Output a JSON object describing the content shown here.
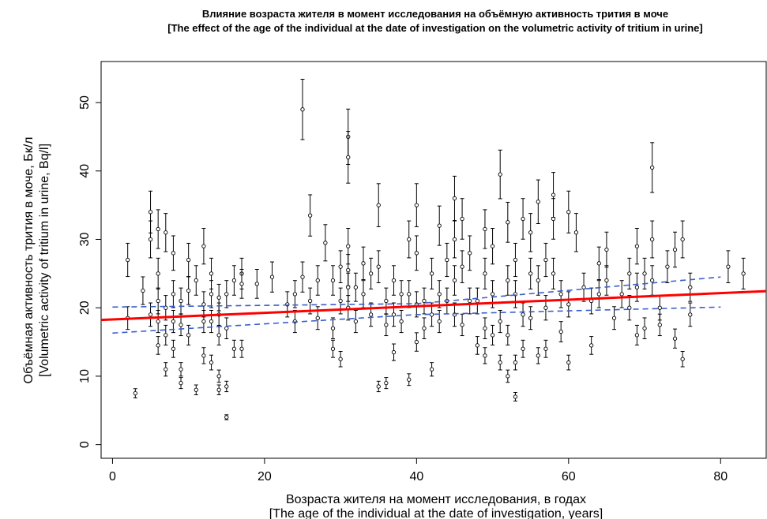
{
  "chart_data": {
    "type": "scatter",
    "title": "Влияние возраста жителя в момент исследования на объёмную активность трития в моче",
    "subtitle": "[The effect of the age of the individual at the date of investigation on the volumetric activity of tritium in urine]",
    "xlabel": "Возраста жителя на момент исследования, в годах",
    "xlabel_en": "[The age of the individual at the date of investigation, years]",
    "ylabel": "Объёмная активность трития в моче, Бк/л",
    "ylabel_en": "[Volumetric activity of tritium in urine, Bq/l]",
    "xlim": [
      -1.5,
      86
    ],
    "ylim": [
      -2,
      56
    ],
    "xticks": [
      0,
      20,
      40,
      60,
      80
    ],
    "yticks": [
      0,
      10,
      20,
      30,
      40,
      50
    ],
    "grid": false,
    "error_fraction": 0.09,
    "point_color": "#000000",
    "fit_color": "#ff0000",
    "ci_color": "#3a5fcd",
    "regression": {
      "intercept": 18.3,
      "slope": 0.048
    },
    "ci_lower": [
      [
        0,
        16.3
      ],
      [
        40,
        19.0
      ],
      [
        80,
        20.1
      ]
    ],
    "ci_upper": [
      [
        0,
        20.1
      ],
      [
        40,
        20.6
      ],
      [
        80,
        24.5
      ]
    ],
    "points": [
      [
        2,
        27
      ],
      [
        2,
        18.5
      ],
      [
        3,
        7.5
      ],
      [
        4,
        22.5
      ],
      [
        5,
        19
      ],
      [
        5,
        34
      ],
      [
        5,
        30
      ],
      [
        6,
        25
      ],
      [
        6,
        21
      ],
      [
        6,
        18
      ],
      [
        6,
        14.5
      ],
      [
        6,
        31.5
      ],
      [
        7,
        31
      ],
      [
        7,
        20
      ],
      [
        7,
        16
      ],
      [
        7,
        11
      ],
      [
        8,
        22
      ],
      [
        8,
        28
      ],
      [
        8,
        18
      ],
      [
        8,
        14
      ],
      [
        9,
        21
      ],
      [
        9,
        17.5
      ],
      [
        9,
        9
      ],
      [
        9,
        11
      ],
      [
        10,
        22.5
      ],
      [
        10,
        27
      ],
      [
        10,
        16
      ],
      [
        11,
        24
      ],
      [
        11,
        8
      ],
      [
        12,
        20.5
      ],
      [
        12,
        18
      ],
      [
        12,
        29
      ],
      [
        12,
        13
      ],
      [
        13,
        22
      ],
      [
        13,
        25
      ],
      [
        13,
        12
      ],
      [
        13,
        18
      ],
      [
        14,
        19
      ],
      [
        14,
        16
      ],
      [
        14,
        10
      ],
      [
        14,
        8
      ],
      [
        14,
        21.5
      ],
      [
        15,
        17
      ],
      [
        15,
        22
      ],
      [
        15,
        8.5
      ],
      [
        15,
        4
      ],
      [
        16,
        14
      ],
      [
        16,
        24
      ],
      [
        17,
        25
      ],
      [
        17,
        23.5
      ],
      [
        17,
        14
      ],
      [
        19,
        23.5
      ],
      [
        21,
        24.5
      ],
      [
        23,
        20.5
      ],
      [
        24,
        22
      ],
      [
        24,
        18
      ],
      [
        25,
        49
      ],
      [
        25,
        24.5
      ],
      [
        26,
        33.5
      ],
      [
        26,
        21
      ],
      [
        27,
        18.5
      ],
      [
        27,
        24
      ],
      [
        28,
        29.5
      ],
      [
        29,
        24
      ],
      [
        29,
        17
      ],
      [
        29,
        14
      ],
      [
        30,
        26
      ],
      [
        30,
        21
      ],
      [
        30,
        12.5
      ],
      [
        31,
        45
      ],
      [
        31,
        42
      ],
      [
        31,
        29
      ],
      [
        31,
        25.5
      ],
      [
        31,
        23
      ],
      [
        31,
        20
      ],
      [
        32,
        23
      ],
      [
        32,
        18
      ],
      [
        33,
        26.5
      ],
      [
        33,
        22
      ],
      [
        34,
        19
      ],
      [
        34,
        25
      ],
      [
        35,
        35
      ],
      [
        35,
        26
      ],
      [
        35,
        8.5
      ],
      [
        36,
        21
      ],
      [
        36,
        17.5
      ],
      [
        36,
        9
      ],
      [
        37,
        24
      ],
      [
        37,
        19
      ],
      [
        37,
        13.5
      ],
      [
        38,
        22
      ],
      [
        38,
        18
      ],
      [
        39,
        30
      ],
      [
        39,
        22
      ],
      [
        39,
        9.5
      ],
      [
        40,
        35
      ],
      [
        40,
        28
      ],
      [
        40,
        20.5
      ],
      [
        40,
        15
      ],
      [
        41,
        21
      ],
      [
        41,
        17
      ],
      [
        42,
        25
      ],
      [
        42,
        19
      ],
      [
        42,
        11
      ],
      [
        43,
        32
      ],
      [
        43,
        22
      ],
      [
        43,
        18
      ],
      [
        44,
        27
      ],
      [
        44,
        21
      ],
      [
        45,
        36
      ],
      [
        45,
        30
      ],
      [
        45,
        24
      ],
      [
        45,
        19
      ],
      [
        46,
        33
      ],
      [
        46,
        26
      ],
      [
        46,
        17.5
      ],
      [
        47,
        21
      ],
      [
        47,
        28
      ],
      [
        48,
        14.5
      ],
      [
        48,
        21
      ],
      [
        49,
        25
      ],
      [
        49,
        13
      ],
      [
        49,
        31.5
      ],
      [
        49,
        17
      ],
      [
        50,
        16
      ],
      [
        50,
        29
      ],
      [
        50,
        22
      ],
      [
        51,
        39.5
      ],
      [
        51,
        18
      ],
      [
        51,
        12
      ],
      [
        52,
        32.5
      ],
      [
        52,
        24
      ],
      [
        52,
        16
      ],
      [
        52,
        10
      ],
      [
        53,
        27
      ],
      [
        53,
        22
      ],
      [
        53,
        7
      ],
      [
        53,
        12
      ],
      [
        54,
        33
      ],
      [
        54,
        19
      ],
      [
        54,
        14
      ],
      [
        55,
        31
      ],
      [
        55,
        25
      ],
      [
        55,
        18.5
      ],
      [
        56,
        35.5
      ],
      [
        56,
        24
      ],
      [
        56,
        13
      ],
      [
        57,
        27
      ],
      [
        57,
        20
      ],
      [
        57,
        14
      ],
      [
        58,
        36.5
      ],
      [
        58,
        33
      ],
      [
        58,
        25
      ],
      [
        59,
        22
      ],
      [
        59,
        16.5
      ],
      [
        60,
        34
      ],
      [
        60,
        20.5
      ],
      [
        60,
        12
      ],
      [
        61,
        31
      ],
      [
        62,
        23
      ],
      [
        63,
        14.5
      ],
      [
        63,
        21
      ],
      [
        64,
        26.5
      ],
      [
        64,
        22
      ],
      [
        65,
        28.5
      ],
      [
        65,
        24
      ],
      [
        66,
        18.5
      ],
      [
        67,
        22
      ],
      [
        68,
        25
      ],
      [
        68,
        20
      ],
      [
        69,
        29
      ],
      [
        69,
        23
      ],
      [
        69,
        16
      ],
      [
        70,
        25
      ],
      [
        70,
        17
      ],
      [
        71,
        40.5
      ],
      [
        71,
        30
      ],
      [
        71,
        24
      ],
      [
        72,
        20
      ],
      [
        72,
        17.5
      ],
      [
        73,
        26
      ],
      [
        74,
        28.5
      ],
      [
        74,
        15.5
      ],
      [
        75,
        30
      ],
      [
        75,
        12.5
      ],
      [
        76,
        23
      ],
      [
        76,
        19
      ],
      [
        81,
        26
      ],
      [
        83,
        25
      ]
    ]
  }
}
